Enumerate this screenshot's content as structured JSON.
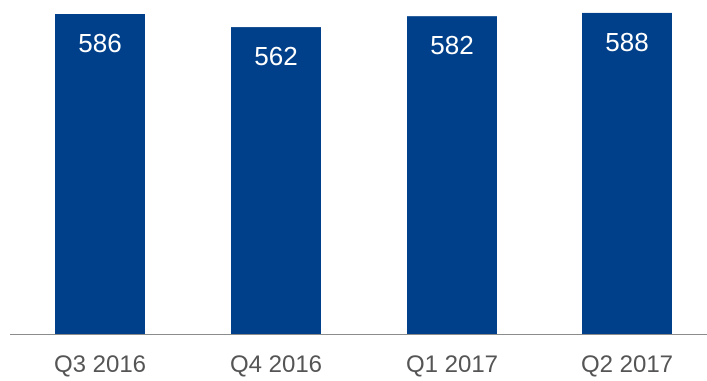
{
  "chart_data": {
    "type": "bar",
    "categories": [
      "Q3 2016",
      "Q4 2016",
      "Q1 2017",
      "Q2 2017"
    ],
    "values": [
      586,
      562,
      582,
      588
    ],
    "data_labels": [
      "586",
      "562",
      "582",
      "588"
    ],
    "title": "",
    "xlabel": "",
    "ylabel": "",
    "ylim": [
      0,
      600
    ],
    "grid": false,
    "legend": "none",
    "colors": {
      "bar": "#00408A",
      "axis": "#8C8C8C",
      "label": "#FFFFFF",
      "tick": "#555555"
    }
  }
}
